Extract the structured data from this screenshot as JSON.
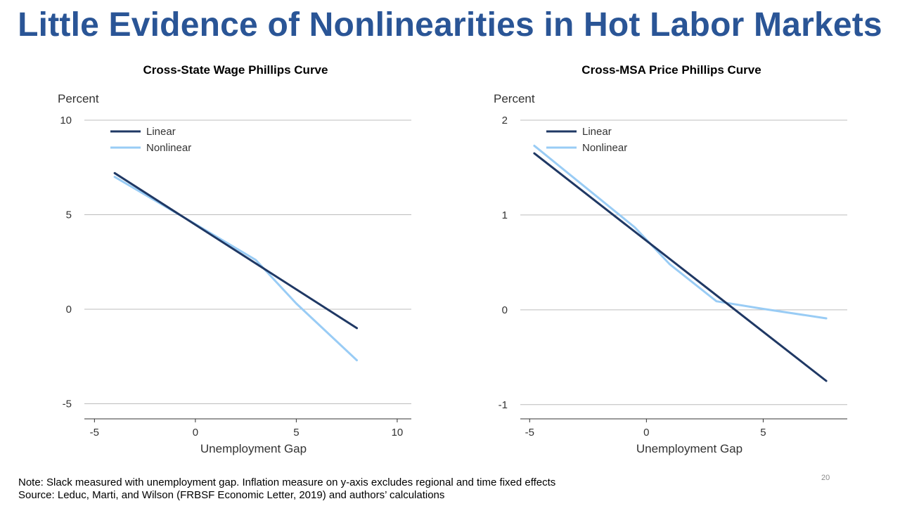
{
  "title": "Little Evidence of Nonlinearities in Hot Labor Markets",
  "chart_data": [
    {
      "type": "line",
      "title": "Cross-State Wage Phillips Curve",
      "ylabel": "Percent",
      "xlabel": "Unemployment Gap",
      "xlim": [
        -5.5,
        10.7
      ],
      "ylim": [
        -5.8,
        10
      ],
      "yticks": [
        10,
        5,
        0,
        -5
      ],
      "xticks": [
        -5,
        0,
        5,
        10
      ],
      "grid": "horizontal",
      "legend_position": "top-left",
      "series": [
        {
          "name": "Linear",
          "color": "#1f3864",
          "points": [
            [
              -4.0,
              7.2
            ],
            [
              8.0,
              -1.0
            ]
          ]
        },
        {
          "name": "Nonlinear",
          "color": "#99ccf5",
          "points": [
            [
              -4.0,
              7.0
            ],
            [
              0.0,
              4.5
            ],
            [
              3.0,
              2.6
            ],
            [
              5.0,
              0.3
            ],
            [
              8.0,
              -2.7
            ]
          ]
        }
      ]
    },
    {
      "type": "line",
      "title": "Cross-MSA Price Phillips Curve",
      "ylabel": "Percent",
      "xlabel": "Unemployment Gap",
      "xlim": [
        -5.4,
        8.6
      ],
      "ylim": [
        -1.15,
        2
      ],
      "yticks": [
        2,
        1,
        0,
        -1
      ],
      "xticks": [
        -5,
        0,
        5
      ],
      "grid": "horizontal",
      "legend_position": "top-left",
      "series": [
        {
          "name": "Linear",
          "color": "#1f3864",
          "points": [
            [
              -4.8,
              1.65
            ],
            [
              7.7,
              -0.75
            ]
          ]
        },
        {
          "name": "Nonlinear",
          "color": "#99ccf5",
          "points": [
            [
              -4.8,
              1.73
            ],
            [
              -0.5,
              0.87
            ],
            [
              1.0,
              0.48
            ],
            [
              3.0,
              0.09
            ],
            [
              5.0,
              0.01
            ],
            [
              7.7,
              -0.09
            ]
          ]
        }
      ]
    }
  ],
  "note": "Note: Slack measured with unemployment  gap. Inflation measure on y-axis excludes regional and time fixed effects",
  "source": "Source: Leduc, Marti, and Wilson (FRBSF Economic Letter, 2019) and authors’ calculations",
  "page_number": "20"
}
